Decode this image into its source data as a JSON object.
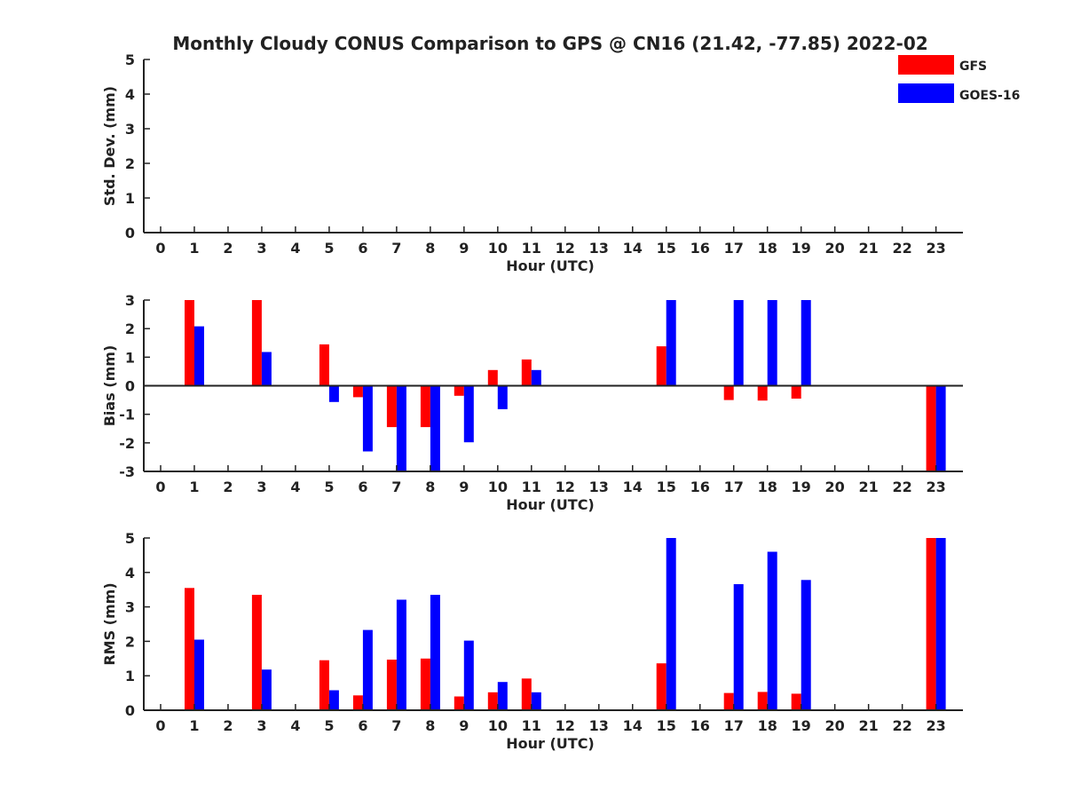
{
  "title": "Monthly Cloudy CONUS Comparison to GPS @ CN16 (21.42, -77.85) 2022-02",
  "legend": [
    {
      "name": "GFS",
      "color": "#ff0000"
    },
    {
      "name": "GOES-16",
      "color": "#0000ff"
    }
  ],
  "chart_data": [
    {
      "type": "bar",
      "title": "Monthly Cloudy CONUS Comparison to GPS @ CN16 (21.42, -77.85) 2022-02",
      "xlabel": "Hour (UTC)",
      "ylabel": "Std. Dev. (mm)",
      "xlim": [
        -0.5,
        23.8
      ],
      "ylim": [
        0,
        5
      ],
      "yticks": [
        0,
        1,
        2,
        3,
        4,
        5
      ],
      "categories": [
        "0",
        "1",
        "2",
        "3",
        "4",
        "5",
        "6",
        "7",
        "8",
        "9",
        "10",
        "11",
        "12",
        "13",
        "14",
        "15",
        "16",
        "17",
        "18",
        "19",
        "20",
        "21",
        "22",
        "23"
      ],
      "series": [
        {
          "name": "GFS",
          "color": "#ff0000",
          "values": [
            null,
            null,
            null,
            null,
            null,
            null,
            null,
            null,
            null,
            null,
            null,
            null,
            null,
            null,
            null,
            null,
            null,
            null,
            null,
            null,
            null,
            null,
            null,
            null
          ]
        },
        {
          "name": "GOES-16",
          "color": "#0000ff",
          "values": [
            null,
            null,
            null,
            null,
            null,
            null,
            null,
            null,
            null,
            null,
            null,
            null,
            null,
            null,
            null,
            null,
            null,
            null,
            null,
            null,
            null,
            null,
            null,
            null
          ]
        }
      ]
    },
    {
      "type": "bar",
      "xlabel": "Hour (UTC)",
      "ylabel": "Bias (mm)",
      "xlim": [
        -0.5,
        23.8
      ],
      "ylim": [
        -3,
        3
      ],
      "yticks": [
        -3,
        -2,
        -1,
        0,
        1,
        2,
        3
      ],
      "categories": [
        "0",
        "1",
        "2",
        "3",
        "4",
        "5",
        "6",
        "7",
        "8",
        "9",
        "10",
        "11",
        "12",
        "13",
        "14",
        "15",
        "16",
        "17",
        "18",
        "19",
        "20",
        "21",
        "22",
        "23"
      ],
      "series": [
        {
          "name": "GFS",
          "color": "#ff0000",
          "values": [
            null,
            3.0,
            null,
            3.0,
            null,
            1.45,
            -0.4,
            -1.45,
            -1.45,
            -0.35,
            0.55,
            0.92,
            null,
            null,
            null,
            1.38,
            null,
            -0.5,
            -0.52,
            -0.45,
            null,
            null,
            null,
            -3.0
          ]
        },
        {
          "name": "GOES-16",
          "color": "#0000ff",
          "values": [
            null,
            2.08,
            null,
            1.18,
            null,
            -0.57,
            -2.3,
            -3.0,
            -3.0,
            -1.98,
            -0.82,
            0.55,
            null,
            null,
            null,
            3.0,
            null,
            3.0,
            3.0,
            3.0,
            null,
            null,
            null,
            -3.0
          ]
        }
      ]
    },
    {
      "type": "bar",
      "xlabel": "Hour (UTC)",
      "ylabel": "RMS (mm)",
      "xlim": [
        -0.5,
        23.8
      ],
      "ylim": [
        0,
        5
      ],
      "yticks": [
        0,
        1,
        2,
        3,
        4,
        5
      ],
      "categories": [
        "0",
        "1",
        "2",
        "3",
        "4",
        "5",
        "6",
        "7",
        "8",
        "9",
        "10",
        "11",
        "12",
        "13",
        "14",
        "15",
        "16",
        "17",
        "18",
        "19",
        "20",
        "21",
        "22",
        "23"
      ],
      "series": [
        {
          "name": "GFS",
          "color": "#ff0000",
          "values": [
            null,
            3.55,
            null,
            3.35,
            null,
            1.45,
            0.43,
            1.47,
            1.5,
            0.4,
            0.52,
            0.92,
            null,
            null,
            null,
            1.36,
            null,
            0.5,
            0.53,
            0.48,
            null,
            null,
            null,
            5.0
          ]
        },
        {
          "name": "GOES-16",
          "color": "#0000ff",
          "values": [
            null,
            2.05,
            null,
            1.18,
            null,
            0.58,
            2.33,
            3.21,
            3.35,
            2.02,
            0.82,
            0.52,
            null,
            null,
            null,
            5.0,
            null,
            3.66,
            4.6,
            3.78,
            null,
            null,
            null,
            5.0
          ]
        }
      ]
    }
  ]
}
